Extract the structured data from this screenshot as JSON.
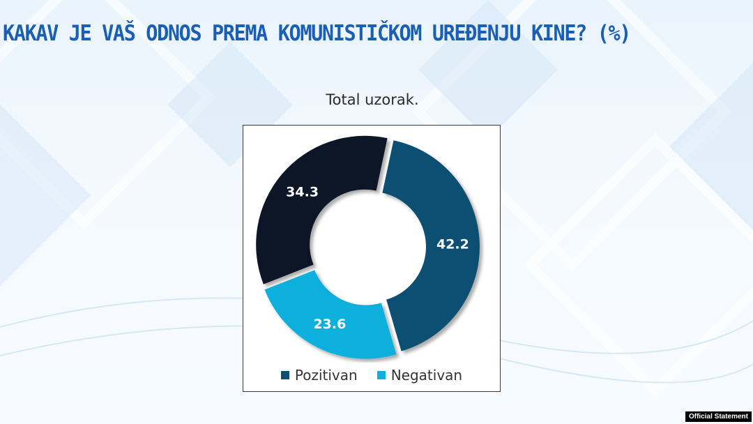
{
  "title": "KAKAV JE VAŠ ODNOS PREMA KOMUNISTIČKOM UREĐENJU KINE? (%)",
  "watermark": "Official Statement",
  "colors": {
    "title": "#1a5fb4",
    "positive": "#0d4f72",
    "negative": "#0bb0dc",
    "neutral": "#0a1628"
  },
  "chart_data": {
    "type": "pie",
    "subtitle": "Total uzorak.",
    "donut": true,
    "slices": [
      {
        "label": "Pozitivan",
        "value": 42.2,
        "color": "#0d4f72",
        "in_legend": true
      },
      {
        "label": "Negativan",
        "value": 23.6,
        "color": "#0bb0dc",
        "in_legend": true
      },
      {
        "label": "",
        "value": 34.3,
        "color": "#0a1628",
        "in_legend": false
      }
    ],
    "legend": [
      "Pozitivan",
      "Negativan"
    ],
    "legend_position": "bottom"
  }
}
